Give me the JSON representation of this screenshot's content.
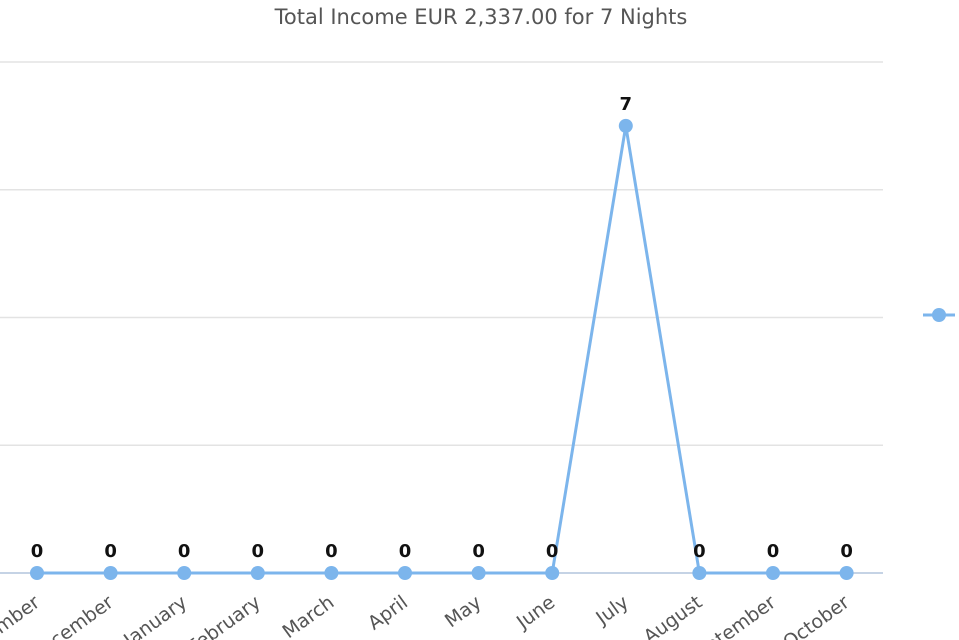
{
  "chart_data": {
    "type": "line",
    "title": "Total Income EUR 2,337.00 for 7 Nights",
    "xlabel": "",
    "ylabel": "",
    "categories": [
      "November",
      "December",
      "January",
      "February",
      "March",
      "April",
      "May",
      "June",
      "July",
      "August",
      "September",
      "October"
    ],
    "series": [
      {
        "values": [
          0,
          0,
          0,
          0,
          0,
          0,
          0,
          0,
          7,
          0,
          0,
          0
        ],
        "color": "#7cb5ec"
      }
    ],
    "ylim": [
      0,
      8
    ],
    "ytick_step": 2,
    "grid": true,
    "data_labels": true,
    "legend": "right"
  }
}
